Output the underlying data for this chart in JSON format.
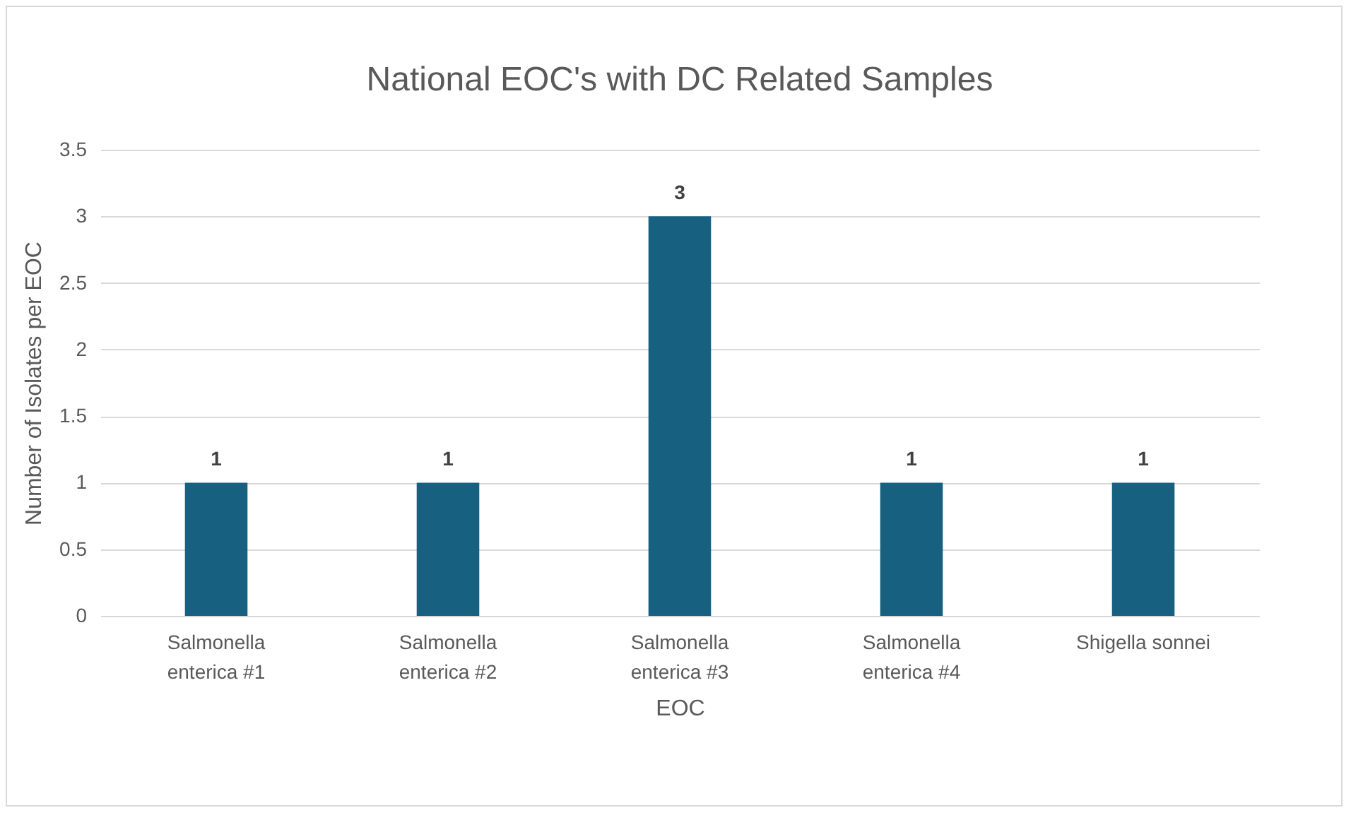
{
  "chart_data": {
    "type": "bar",
    "title": "National EOC's with DC Related Samples",
    "xlabel": "EOC",
    "ylabel": "Number of Isolates per EOC",
    "categories": [
      "Salmonella enterica #1",
      "Salmonella enterica #2",
      "Salmonella enterica #3",
      "Salmonella enterica #4",
      "Shigella sonnei"
    ],
    "values": [
      1,
      1,
      3,
      1,
      1
    ],
    "color": "#17607f",
    "ylim": [
      0,
      3.5
    ],
    "yticks": [
      0,
      0.5,
      1,
      1.5,
      2,
      2.5,
      3,
      3.5
    ],
    "grid": "y",
    "data_labels": true
  }
}
